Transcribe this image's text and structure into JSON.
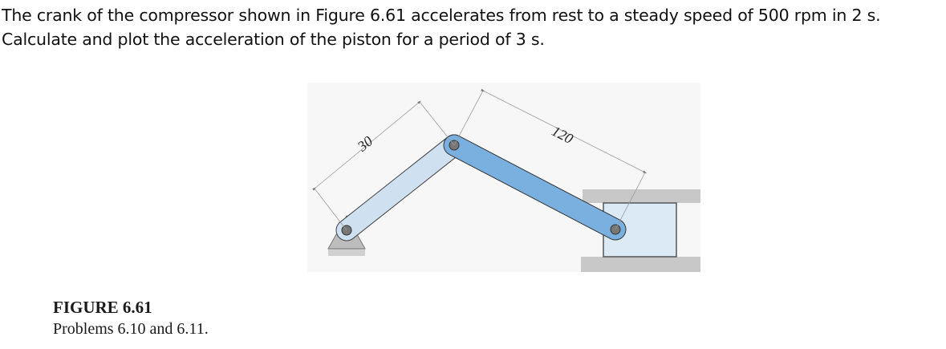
{
  "problem": {
    "line1": "The crank of the compressor shown in Figure 6.61 accelerates from rest to a steady speed of 500 rpm in 2 s.",
    "line2": "Calculate and plot the acceleration of the piston for a period of 3 s."
  },
  "figure": {
    "crank_dimension": "30",
    "rod_dimension": "120"
  },
  "caption": {
    "title": "FIGURE 6.61",
    "body": "Problems 6.10 and 6.11."
  },
  "colors": {
    "crank": "#cfe0f1",
    "rod": "#7ab0df",
    "piston": "#dceaf6",
    "wall": "#c8c8c8",
    "support": "#bdbdbd"
  }
}
